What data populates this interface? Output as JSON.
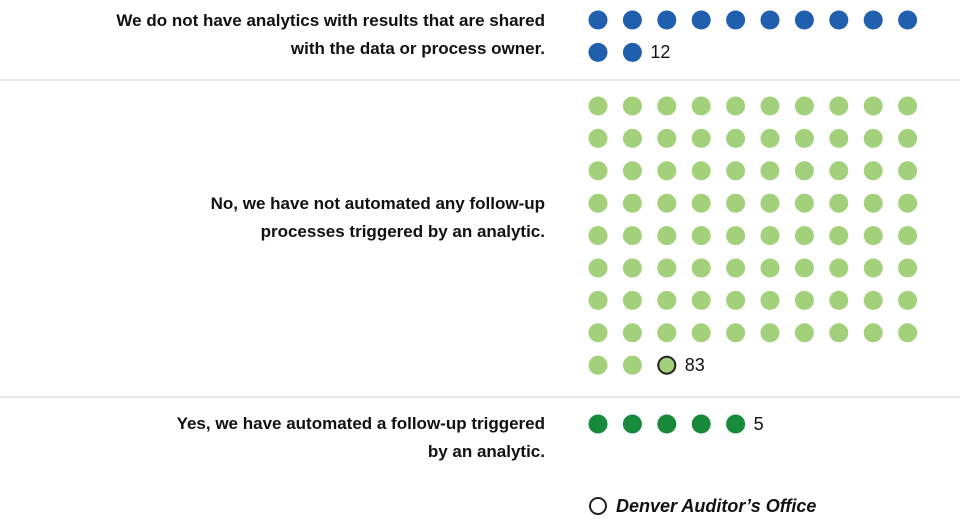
{
  "chart_data": {
    "type": "dot",
    "categories": [
      "We do not have analytics with results that are shared with the data or process owner.",
      "No, we have not automated any follow-up processes triggered by an analytic.",
      "Yes, we have automated a follow-up triggered by an analytic."
    ],
    "values": [
      12,
      83,
      5
    ],
    "colors": [
      "#1f5fad",
      "#a3d07a",
      "#178a3b"
    ],
    "highlight": {
      "category": 1,
      "label": "Denver Auditor’s Office"
    }
  }
}
